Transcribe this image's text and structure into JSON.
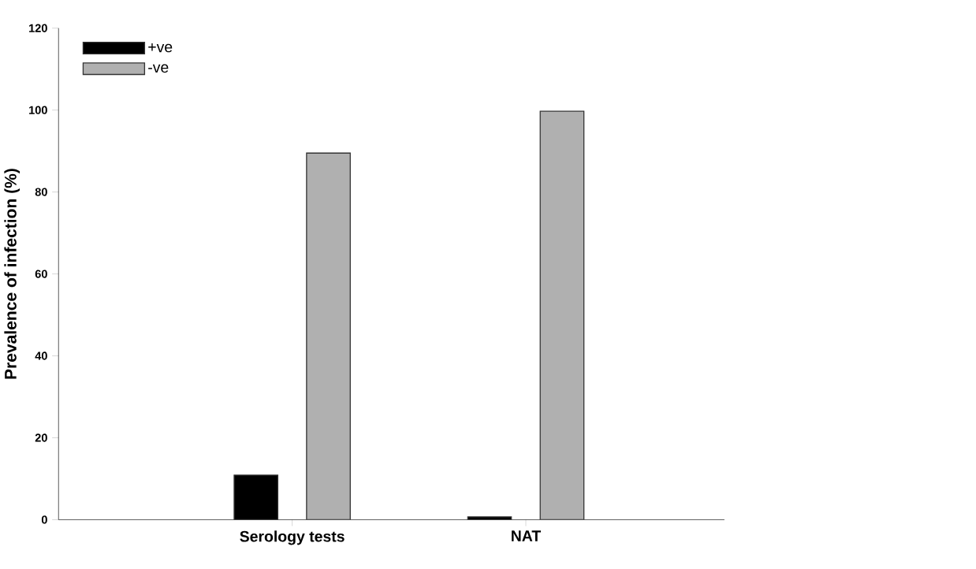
{
  "chart_data": {
    "type": "bar",
    "ylabel": "Prevalence of infection (%)",
    "categories": [
      "Serology tests",
      "NAT"
    ],
    "series": [
      {
        "name": "+ve",
        "color": "#000000",
        "values": [
          10.9,
          0.7
        ]
      },
      {
        "name": "-ve",
        "color": "#b0b0b0",
        "values": [
          89.5,
          99.7
        ]
      }
    ],
    "ylim": [
      0,
      120
    ],
    "yticks": [
      0,
      20,
      40,
      60,
      80,
      100,
      120
    ],
    "grid": false,
    "legend": "top left"
  }
}
